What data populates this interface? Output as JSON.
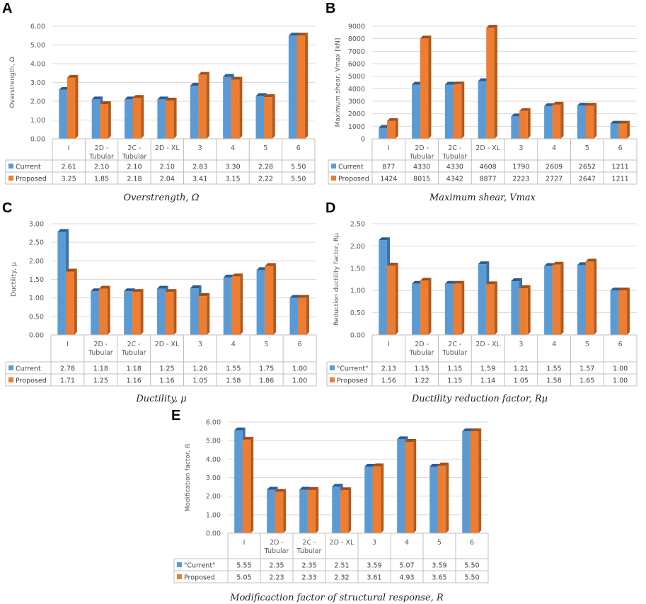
{
  "colors": {
    "current": "#5b9bd5",
    "current_side": "#3c6fa8",
    "current_top": "#2e5b8f",
    "proposed": "#ed7d31",
    "proposed_side": "#b35a1c",
    "proposed_top": "#a14f17",
    "grid": "#d9d9d9",
    "border": "#bfbfbf"
  },
  "chart_data": [
    {
      "id": "A",
      "letter": "A",
      "type": "bar",
      "categories": [
        [
          "I"
        ],
        [
          "2D -",
          "Tubular"
        ],
        [
          "2C -",
          "Tubular"
        ],
        [
          "2D - XL"
        ],
        [
          "3"
        ],
        [
          "4"
        ],
        [
          "5"
        ],
        [
          "6"
        ]
      ],
      "yticks": [
        "0.00",
        "1.00",
        "2.00",
        "3.00",
        "4.00",
        "5.00",
        "6.00"
      ],
      "ylim": [
        0,
        6
      ],
      "ylabel": "Overstrength, Ω",
      "caption": "Overstrength, Ω",
      "series": [
        {
          "name": "Current",
          "values": [
            2.61,
            2.1,
            2.1,
            2.1,
            2.83,
            3.3,
            2.28,
            5.5
          ],
          "labels": [
            "2.61",
            "2.10",
            "2.10",
            "2.10",
            "2.83",
            "3.30",
            "2.28",
            "5.50"
          ]
        },
        {
          "name": "Proposed",
          "values": [
            3.25,
            1.85,
            2.18,
            2.04,
            3.41,
            3.15,
            2.22,
            5.5
          ],
          "labels": [
            "3.25",
            "1.85",
            "2.18",
            "2.04",
            "3.41",
            "3.15",
            "2.22",
            "5.50"
          ]
        }
      ]
    },
    {
      "id": "B",
      "letter": "B",
      "type": "bar",
      "categories": [
        [
          "I"
        ],
        [
          "2D -",
          "Tubular"
        ],
        [
          "2C -",
          "Tubular"
        ],
        [
          "2D - XL"
        ],
        [
          "3"
        ],
        [
          "4"
        ],
        [
          "5"
        ],
        [
          "6"
        ]
      ],
      "yticks": [
        "0",
        "1000",
        "2000",
        "3000",
        "4000",
        "5000",
        "6000",
        "7000",
        "8000",
        "9000"
      ],
      "ylim": [
        0,
        9000
      ],
      "ylabel": "Maximum shear, Vmax [kN]",
      "caption": "Maximum shear, Vmax",
      "series": [
        {
          "name": "Current",
          "values": [
            877,
            4330,
            4330,
            4608,
            1790,
            2609,
            2652,
            1211
          ],
          "labels": [
            "877",
            "4330",
            "4330",
            "4608",
            "1790",
            "2609",
            "2652",
            "1211"
          ]
        },
        {
          "name": "Proposed",
          "values": [
            1424,
            8015,
            4342,
            8877,
            2223,
            2727,
            2647,
            1211
          ],
          "labels": [
            "1424",
            "8015",
            "4342",
            "8877",
            "2223",
            "2727",
            "2647",
            "1211"
          ]
        }
      ]
    },
    {
      "id": "C",
      "letter": "C",
      "type": "bar",
      "categories": [
        [
          "I"
        ],
        [
          "2D -",
          "Tubular"
        ],
        [
          "2C -",
          "Tubular"
        ],
        [
          "2D - XL"
        ],
        [
          "3"
        ],
        [
          "4"
        ],
        [
          "5"
        ],
        [
          "6"
        ]
      ],
      "yticks": [
        "0.00",
        "0.50",
        "1.00",
        "1.50",
        "2.00",
        "2.50",
        "3.00"
      ],
      "ylim": [
        0,
        3
      ],
      "ylabel": "Ductility, μ",
      "caption": "Ductility, μ",
      "series": [
        {
          "name": "Current",
          "values": [
            2.78,
            1.18,
            1.18,
            1.25,
            1.26,
            1.55,
            1.75,
            1.0
          ],
          "labels": [
            "2.78",
            "1.18",
            "1.18",
            "1.25",
            "1.26",
            "1.55",
            "1.75",
            "1.00"
          ]
        },
        {
          "name": "Proposed",
          "values": [
            1.71,
            1.25,
            1.16,
            1.16,
            1.05,
            1.58,
            1.86,
            1.0
          ],
          "labels": [
            "1.71",
            "1.25",
            "1.16",
            "1.16",
            "1.05",
            "1.58",
            "1.86",
            "1.00"
          ]
        }
      ]
    },
    {
      "id": "D",
      "letter": "D",
      "type": "bar",
      "categories": [
        [
          "I"
        ],
        [
          "2D -",
          "Tubular"
        ],
        [
          "2C -",
          "Tubular"
        ],
        [
          "2D - XL"
        ],
        [
          "3"
        ],
        [
          "4"
        ],
        [
          "5"
        ],
        [
          "6"
        ]
      ],
      "yticks": [
        "0.00",
        "0.50",
        "1.00",
        "1.50",
        "2.00",
        "2.50"
      ],
      "ylim": [
        0,
        2.5
      ],
      "ylabel": "Reduction ductility factor, Rμ",
      "caption": "Ductility reduction factor, Rμ",
      "series": [
        {
          "name": "\"Current\"",
          "values": [
            2.13,
            1.15,
            1.15,
            1.59,
            1.21,
            1.55,
            1.57,
            1.0
          ],
          "labels": [
            "2.13",
            "1.15",
            "1.15",
            "1.59",
            "1.21",
            "1.55",
            "1.57",
            "1.00"
          ]
        },
        {
          "name": "Proposed",
          "values": [
            1.56,
            1.22,
            1.15,
            1.14,
            1.05,
            1.58,
            1.65,
            1.0
          ],
          "labels": [
            "1.56",
            "1.22",
            "1.15",
            "1.14",
            "1.05",
            "1.58",
            "1.65",
            "1.00"
          ]
        }
      ]
    },
    {
      "id": "E",
      "letter": "E",
      "type": "bar",
      "categories": [
        [
          "I"
        ],
        [
          "2D -",
          "Tubular"
        ],
        [
          "2C -",
          "Tubular"
        ],
        [
          "2D - XL"
        ],
        [
          "3"
        ],
        [
          "4"
        ],
        [
          "5"
        ],
        [
          "6"
        ]
      ],
      "yticks": [
        "0.00",
        "1.00",
        "2.00",
        "3.00",
        "4.00",
        "5.00",
        "6.00"
      ],
      "ylim": [
        0,
        6
      ],
      "ylabel": "Modification factor, R",
      "caption": "Modificaction factor of structural response, R",
      "series": [
        {
          "name": "\"Current\"",
          "values": [
            5.55,
            2.35,
            2.35,
            2.51,
            3.59,
            5.07,
            3.59,
            5.5
          ],
          "labels": [
            "5.55",
            "2.35",
            "2.35",
            "2.51",
            "3.59",
            "5.07",
            "3.59",
            "5.50"
          ]
        },
        {
          "name": "Proposed",
          "values": [
            5.05,
            2.23,
            2.33,
            2.32,
            3.61,
            4.93,
            3.65,
            5.5
          ],
          "labels": [
            "5.05",
            "2.23",
            "2.33",
            "2.32",
            "3.61",
            "4.93",
            "3.65",
            "5.50"
          ]
        }
      ]
    }
  ]
}
